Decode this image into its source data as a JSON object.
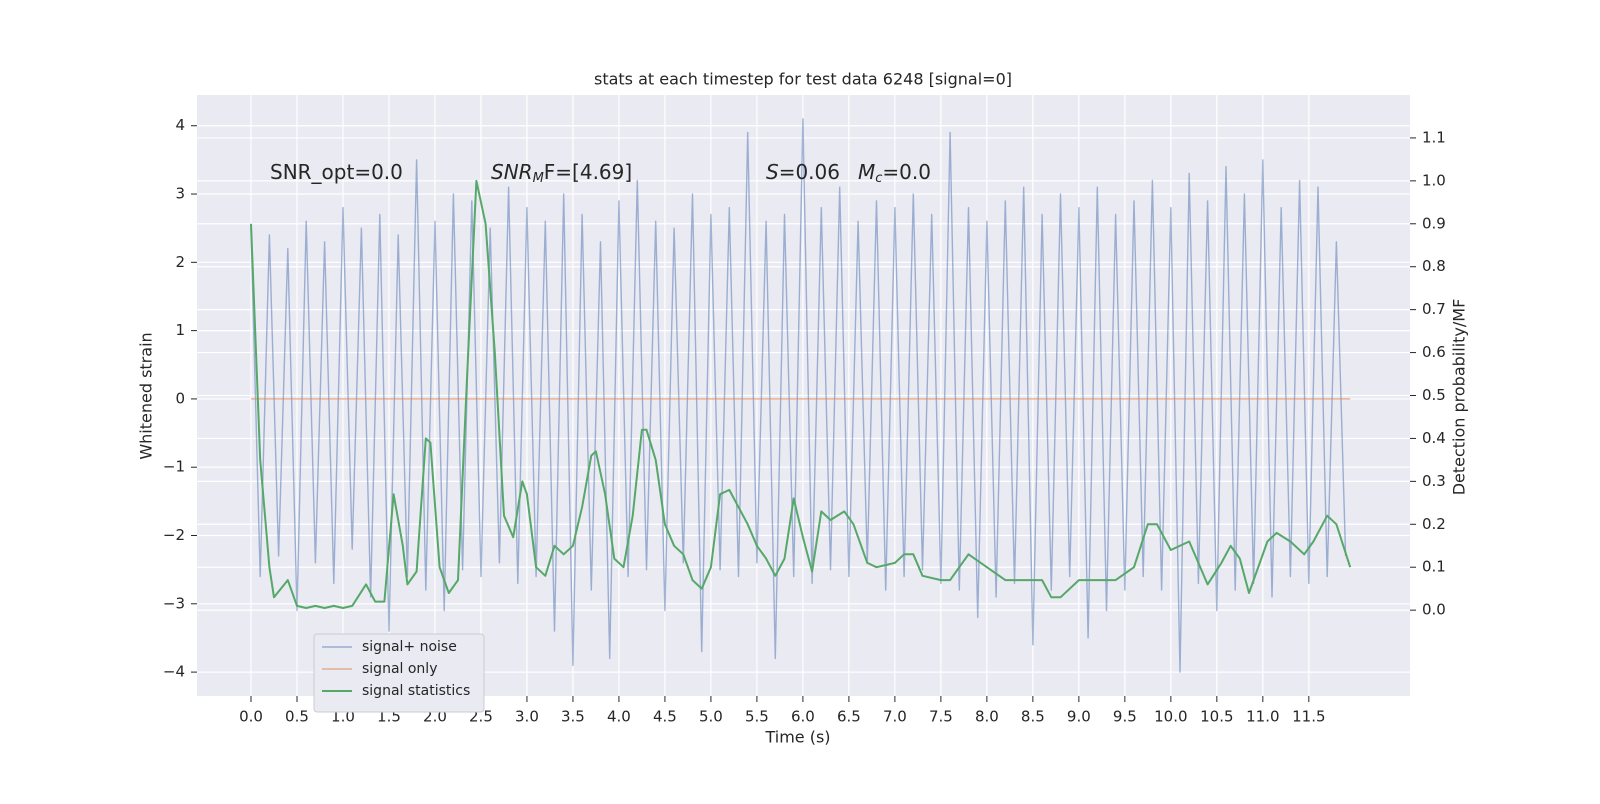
{
  "chart_data": {
    "type": "line",
    "title": "stats at each timestep for test data 6248 [signal=0]",
    "xlabel": "Time (s)",
    "ylabel": "Whitened strain",
    "y2label": "Detection probability/MF",
    "annotations": [
      [
        "SNR_opt=0.0"
      ],
      [
        "SNR",
        "M",
        "F=[4.69]"
      ],
      [
        "S",
        "=0.06"
      ],
      [
        "M",
        "c",
        "=0.0"
      ]
    ],
    "xlim": [
      -0.587,
      12.6
    ],
    "ylim": [
      -4.35,
      4.45
    ],
    "y2lim": [
      -0.2,
      1.2
    ],
    "xticks": [
      {
        "value": 0,
        "label": "0.0"
      },
      0.5,
      {
        "value": 1,
        "label": "1.0"
      },
      1.5,
      {
        "value": 2,
        "label": "2.0"
      },
      2.5,
      {
        "value": 3,
        "label": "3.0"
      },
      3.5,
      {
        "value": 4,
        "label": "4.0"
      },
      4.5,
      {
        "value": 5,
        "label": "5.0"
      },
      5.5,
      {
        "value": 6,
        "label": "6.0"
      },
      6.5,
      {
        "value": 7,
        "label": "7.0"
      },
      7.5,
      {
        "value": 8,
        "label": "8.0"
      },
      8.5,
      {
        "value": 9,
        "label": "9.0"
      },
      9.5,
      {
        "value": 10,
        "label": "10.0"
      },
      10.5,
      {
        "value": 11,
        "label": "11.0"
      },
      11.5
    ],
    "yticks": [
      {
        "value": -4,
        "label": "−4"
      },
      {
        "value": -3,
        "label": "−3"
      },
      {
        "value": -2,
        "label": "−2"
      },
      {
        "value": -1,
        "label": "−1"
      },
      0,
      1,
      2,
      3,
      4
    ],
    "y2ticks": [
      {
        "value": 0,
        "label": "0.0"
      },
      0.1,
      0.2,
      0.3,
      0.4,
      0.5,
      0.6,
      0.7,
      0.8,
      0.9,
      {
        "value": 1,
        "label": "1.0"
      },
      1.1
    ],
    "grid": true,
    "legend": "lower left",
    "series": [
      {
        "name": "signal+ noise",
        "color": "#4c72b0",
        "x": [
          0,
          0.1,
          0.2,
          0.3,
          0.4,
          0.5,
          0.6,
          0.7,
          0.8,
          0.9,
          1,
          1.1,
          1.2,
          1.3,
          1.4,
          1.5,
          1.6,
          1.7,
          1.8,
          1.9,
          2,
          2.1,
          2.2,
          2.3,
          2.4,
          2.5,
          2.6,
          2.7,
          2.8,
          2.9,
          3,
          3.1,
          3.2,
          3.3,
          3.4,
          3.5,
          3.6,
          3.7,
          3.8,
          3.9,
          4,
          4.1,
          4.2,
          4.3,
          4.4,
          4.5,
          4.6,
          4.7,
          4.8,
          4.9,
          5,
          5.1,
          5.2,
          5.3,
          5.4,
          5.5,
          5.6,
          5.7,
          5.8,
          5.9,
          6,
          6.1,
          6.2,
          6.3,
          6.4,
          6.5,
          6.6,
          6.7,
          6.8,
          6.9,
          7,
          7.1,
          7.2,
          7.3,
          7.4,
          7.5,
          7.6,
          7.7,
          7.8,
          7.9,
          8,
          8.1,
          8.2,
          8.3,
          8.4,
          8.5,
          8.6,
          8.7,
          8.8,
          8.9,
          9,
          9.1,
          9.2,
          9.3,
          9.4,
          9.5,
          9.6,
          9.7,
          9.8,
          9.9,
          10,
          10.1,
          10.2,
          10.3,
          10.4,
          10.5,
          10.6,
          10.7,
          10.8,
          10.9,
          11,
          11.1,
          11.2,
          11.3,
          11.4,
          11.5,
          11.6,
          11.7,
          11.8,
          11.9
        ],
        "values": [
          2.5,
          -2.6,
          2.4,
          -2.3,
          2.2,
          -3.1,
          2.6,
          -2.4,
          2.3,
          -2.7,
          2.8,
          -2.2,
          2.5,
          -2.9,
          2.7,
          -3.4,
          2.4,
          -2.6,
          3.5,
          -2.8,
          2.6,
          -3.1,
          3.0,
          -2.5,
          2.9,
          -2.6,
          2.5,
          -2.4,
          3.1,
          -2.7,
          2.8,
          -2.6,
          2.6,
          -3.4,
          3.0,
          -3.9,
          2.7,
          -2.8,
          2.3,
          -3.8,
          2.9,
          -2.6,
          3.2,
          -2.5,
          2.6,
          -3.1,
          2.5,
          -2.4,
          3.0,
          -3.7,
          2.7,
          -2.5,
          2.8,
          -2.6,
          3.9,
          -2.4,
          2.6,
          -3.8,
          2.7,
          -2.6,
          4.1,
          -2.7,
          2.8,
          -2.5,
          3.1,
          -2.6,
          2.6,
          -2.4,
          2.9,
          -2.8,
          2.8,
          -2.6,
          3.0,
          -2.5,
          2.7,
          -2.7,
          3.9,
          -2.8,
          2.8,
          -3.2,
          2.6,
          -2.9,
          2.9,
          -2.7,
          3.1,
          -3.6,
          2.7,
          -2.8,
          3.0,
          -2.6,
          2.8,
          -3.5,
          3.1,
          -3.1,
          2.7,
          -2.8,
          2.9,
          -2.6,
          3.2,
          -2.8,
          2.8,
          -4.0,
          3.3,
          -2.7,
          2.9,
          -3.1,
          3.4,
          -2.8,
          3.0,
          -2.7,
          3.5,
          -2.9,
          2.8,
          -2.6,
          3.2,
          -2.7,
          3.1,
          -2.6,
          2.3,
          -2.3
        ]
      },
      {
        "name": "signal only",
        "color": "#dd8452",
        "x": [
          0,
          11.95
        ],
        "values": [
          0,
          0
        ]
      },
      {
        "name": "signal statistics",
        "color": "#55a868",
        "axis": "y2",
        "x": [
          0,
          0.1,
          0.2,
          0.25,
          0.4,
          0.5,
          0.6,
          0.7,
          0.8,
          0.9,
          1.0,
          1.1,
          1.25,
          1.35,
          1.45,
          1.55,
          1.65,
          1.7,
          1.8,
          1.9,
          1.95,
          2.05,
          2.15,
          2.25,
          2.35,
          2.45,
          2.55,
          2.65,
          2.75,
          2.85,
          2.95,
          3.0,
          3.1,
          3.2,
          3.3,
          3.4,
          3.5,
          3.6,
          3.7,
          3.75,
          3.85,
          3.95,
          4.05,
          4.15,
          4.25,
          4.3,
          4.4,
          4.5,
          4.6,
          4.7,
          4.8,
          4.9,
          5.0,
          5.1,
          5.2,
          5.3,
          5.4,
          5.5,
          5.6,
          5.7,
          5.8,
          5.9,
          6.0,
          6.1,
          6.2,
          6.3,
          6.45,
          6.55,
          6.7,
          6.8,
          7.0,
          7.1,
          7.2,
          7.3,
          7.5,
          7.6,
          7.8,
          8.0,
          8.2,
          8.4,
          8.6,
          8.7,
          8.8,
          9.0,
          9.2,
          9.4,
          9.6,
          9.75,
          9.85,
          10.0,
          10.2,
          10.3,
          10.4,
          10.55,
          10.65,
          10.75,
          10.85,
          11.05,
          11.15,
          11.3,
          11.45,
          11.55,
          11.7,
          11.8,
          11.95
        ],
        "values": [
          0.9,
          0.35,
          0.1,
          0.03,
          0.07,
          0.01,
          0.005,
          0.01,
          0.005,
          0.01,
          0.005,
          0.01,
          0.06,
          0.02,
          0.02,
          0.27,
          0.15,
          0.06,
          0.09,
          0.4,
          0.39,
          0.1,
          0.04,
          0.07,
          0.55,
          1.0,
          0.9,
          0.6,
          0.22,
          0.17,
          0.3,
          0.27,
          0.1,
          0.08,
          0.15,
          0.13,
          0.15,
          0.24,
          0.36,
          0.37,
          0.27,
          0.12,
          0.1,
          0.22,
          0.42,
          0.42,
          0.35,
          0.2,
          0.15,
          0.13,
          0.07,
          0.05,
          0.1,
          0.27,
          0.28,
          0.24,
          0.2,
          0.15,
          0.12,
          0.08,
          0.12,
          0.26,
          0.17,
          0.09,
          0.23,
          0.21,
          0.23,
          0.2,
          0.11,
          0.1,
          0.11,
          0.13,
          0.13,
          0.08,
          0.07,
          0.07,
          0.13,
          0.1,
          0.07,
          0.07,
          0.07,
          0.03,
          0.03,
          0.07,
          0.07,
          0.07,
          0.1,
          0.2,
          0.2,
          0.14,
          0.16,
          0.11,
          0.06,
          0.11,
          0.15,
          0.12,
          0.04,
          0.16,
          0.18,
          0.16,
          0.13,
          0.16,
          0.22,
          0.2,
          0.1
        ]
      }
    ]
  }
}
